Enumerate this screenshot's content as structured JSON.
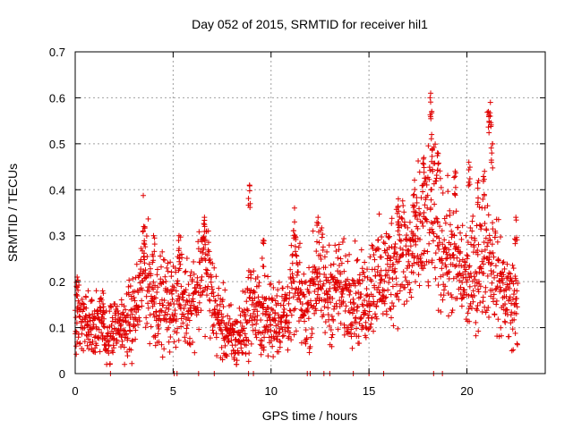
{
  "chart_data": {
    "type": "scatter",
    "title": "Day 052 of 2015, SRMTID for receiver hil1",
    "xlabel": "GPS time / hours",
    "ylabel": "SRMTID / TECUs",
    "xlim": [
      0,
      24
    ],
    "ylim": [
      0,
      0.7
    ],
    "xticks": [
      0,
      5,
      10,
      15,
      20
    ],
    "yticks": [
      0,
      0.1,
      0.2,
      0.3,
      0.4,
      0.5,
      0.6,
      0.7
    ],
    "xtick_labels": [
      "0",
      "5",
      "10",
      "15",
      "20"
    ],
    "ytick_labels": [
      "0",
      "0.1",
      "0.2",
      "0.3",
      "0.4",
      "0.5",
      "0.6",
      "0.7"
    ],
    "grid": true,
    "marker": "+",
    "marker_color": "#e00000",
    "series": [
      {
        "name": "hil1",
        "trend": [
          [
            0.0,
            0.13
          ],
          [
            0.3,
            0.12
          ],
          [
            0.7,
            0.11
          ],
          [
            1.0,
            0.12
          ],
          [
            1.3,
            0.1
          ],
          [
            1.6,
            0.08
          ],
          [
            2.0,
            0.09
          ],
          [
            2.3,
            0.1
          ],
          [
            2.6,
            0.11
          ],
          [
            2.9,
            0.12
          ],
          [
            3.2,
            0.15
          ],
          [
            3.5,
            0.24
          ],
          [
            3.8,
            0.19
          ],
          [
            4.1,
            0.15
          ],
          [
            4.4,
            0.16
          ],
          [
            4.7,
            0.15
          ],
          [
            5.0,
            0.15
          ],
          [
            5.3,
            0.18
          ],
          [
            5.6,
            0.15
          ],
          [
            5.9,
            0.16
          ],
          [
            6.2,
            0.18
          ],
          [
            6.5,
            0.25
          ],
          [
            6.8,
            0.22
          ],
          [
            7.0,
            0.16
          ],
          [
            7.3,
            0.12
          ],
          [
            7.6,
            0.1
          ],
          [
            7.9,
            0.08
          ],
          [
            8.2,
            0.07
          ],
          [
            8.5,
            0.09
          ],
          [
            8.8,
            0.13
          ],
          [
            9.0,
            0.16
          ],
          [
            9.3,
            0.13
          ],
          [
            9.6,
            0.12
          ],
          [
            10.0,
            0.12
          ],
          [
            10.3,
            0.13
          ],
          [
            10.6,
            0.12
          ],
          [
            11.0,
            0.15
          ],
          [
            11.2,
            0.22
          ],
          [
            11.5,
            0.16
          ],
          [
            11.8,
            0.13
          ],
          [
            12.1,
            0.18
          ],
          [
            12.4,
            0.22
          ],
          [
            12.7,
            0.18
          ],
          [
            13.0,
            0.17
          ],
          [
            13.4,
            0.19
          ],
          [
            13.8,
            0.17
          ],
          [
            14.2,
            0.18
          ],
          [
            14.6,
            0.15
          ],
          [
            15.0,
            0.17
          ],
          [
            15.3,
            0.22
          ],
          [
            15.6,
            0.2
          ],
          [
            16.0,
            0.22
          ],
          [
            16.3,
            0.25
          ],
          [
            16.7,
            0.27
          ],
          [
            17.0,
            0.24
          ],
          [
            17.3,
            0.27
          ],
          [
            17.6,
            0.3
          ],
          [
            17.9,
            0.32
          ],
          [
            18.2,
            0.36
          ],
          [
            18.5,
            0.3
          ],
          [
            18.8,
            0.28
          ],
          [
            19.1,
            0.26
          ],
          [
            19.5,
            0.24
          ],
          [
            19.8,
            0.21
          ],
          [
            20.1,
            0.2
          ],
          [
            20.4,
            0.22
          ],
          [
            20.7,
            0.24
          ],
          [
            21.0,
            0.27
          ],
          [
            21.3,
            0.25
          ],
          [
            21.6,
            0.2
          ],
          [
            21.9,
            0.18
          ],
          [
            22.2,
            0.16
          ],
          [
            22.6,
            0.15
          ]
        ],
        "peaks": [
          [
            0.1,
            0.21
          ],
          [
            1.4,
            0.18
          ],
          [
            3.5,
            0.32
          ],
          [
            4.0,
            0.3
          ],
          [
            5.3,
            0.3
          ],
          [
            6.6,
            0.34
          ],
          [
            8.9,
            0.41
          ],
          [
            9.6,
            0.29
          ],
          [
            11.2,
            0.33
          ],
          [
            12.4,
            0.34
          ],
          [
            16.5,
            0.38
          ],
          [
            17.3,
            0.39
          ],
          [
            17.8,
            0.47
          ],
          [
            18.15,
            0.61
          ],
          [
            18.2,
            0.52
          ],
          [
            18.5,
            0.48
          ],
          [
            19.4,
            0.44
          ],
          [
            20.1,
            0.46
          ],
          [
            20.6,
            0.42
          ],
          [
            20.9,
            0.44
          ],
          [
            21.1,
            0.57
          ],
          [
            21.2,
            0.59
          ],
          [
            21.3,
            0.5
          ],
          [
            22.5,
            0.34
          ]
        ],
        "zero_marks": [
          1.8,
          5.05,
          5.2,
          6.3,
          7.1,
          8.85,
          9.1,
          11.85,
          12.0,
          12.7,
          13.0,
          14.2,
          15.0,
          15.75,
          18.3,
          18.75
        ]
      }
    ]
  }
}
